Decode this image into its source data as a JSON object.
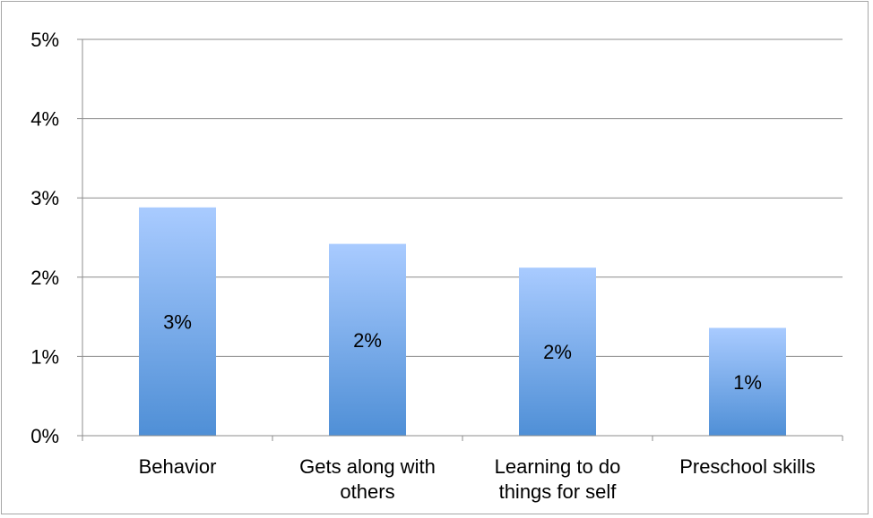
{
  "chart_data": {
    "type": "bar",
    "categories": [
      "Behavior",
      "Gets along with others",
      "Learning to do things for self",
      "Preschool skills"
    ],
    "category_lines": [
      [
        "Behavior"
      ],
      [
        "Gets along with",
        "others"
      ],
      [
        "Learning to do",
        "things for self"
      ],
      [
        "Preschool skills"
      ]
    ],
    "values": [
      2.88,
      2.42,
      2.12,
      1.36
    ],
    "data_labels": [
      "3%",
      "2%",
      "2%",
      "1%"
    ],
    "ylim": [
      0,
      5
    ],
    "yticks": [
      0,
      1,
      2,
      3,
      4,
      5
    ],
    "ytick_labels": [
      "0%",
      "1%",
      "2%",
      "3%",
      "4%",
      "5%"
    ],
    "title": "",
    "xlabel": "",
    "ylabel": "",
    "grid": true,
    "legend": "none",
    "bar_color_top": "#a9cbff",
    "bar_color_bottom": "#4f8fd6",
    "gridline_color": "#8c8c8c"
  }
}
